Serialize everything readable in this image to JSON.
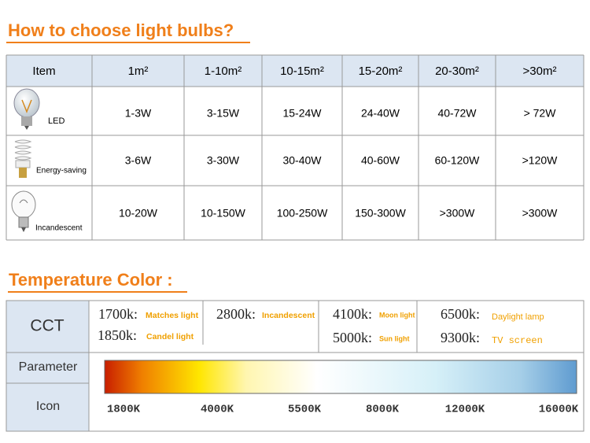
{
  "header": {
    "title": "How to choose light bulbs?"
  },
  "table": {
    "columns": [
      "Item",
      "1m²",
      "1-10m²",
      "10-15m²",
      "15-20m²",
      "20-30m²",
      ">30m²"
    ],
    "rows": [
      [
        "LED",
        "1-3W",
        "3-15W",
        "15-24W",
        "24-40W",
        "40-72W",
        "> 72W"
      ],
      [
        "Energy-saving",
        "3-6W",
        "3-30W",
        "30-40W",
        "40-60W",
        "60-120W",
        ">120W"
      ],
      [
        "Incandescent",
        "10-20W",
        "10-150W",
        "100-250W",
        "150-300W",
        ">300W",
        ">300W"
      ]
    ]
  },
  "temperature": {
    "title": "Temperature Color :",
    "labels": [
      "CCT",
      "Parameter",
      "Icon"
    ],
    "cct": [
      {
        "value": "1700k:",
        "desc": "Matches light"
      },
      {
        "value": "1850k:",
        "desc": "Candel light"
      },
      {
        "value": "2800k:",
        "desc": "Incandescent"
      },
      {
        "value": "4100k:",
        "desc": "Moon light"
      },
      {
        "value": "5000k:",
        "desc": "Sun light"
      },
      {
        "value": "6500k:",
        "desc": "Daylight lamp"
      },
      {
        "value": "9300k:",
        "desc": "TV screen"
      }
    ],
    "scale": [
      "1800K",
      "4000K",
      "5500K",
      "8000K",
      "12000K",
      "16000K"
    ]
  }
}
